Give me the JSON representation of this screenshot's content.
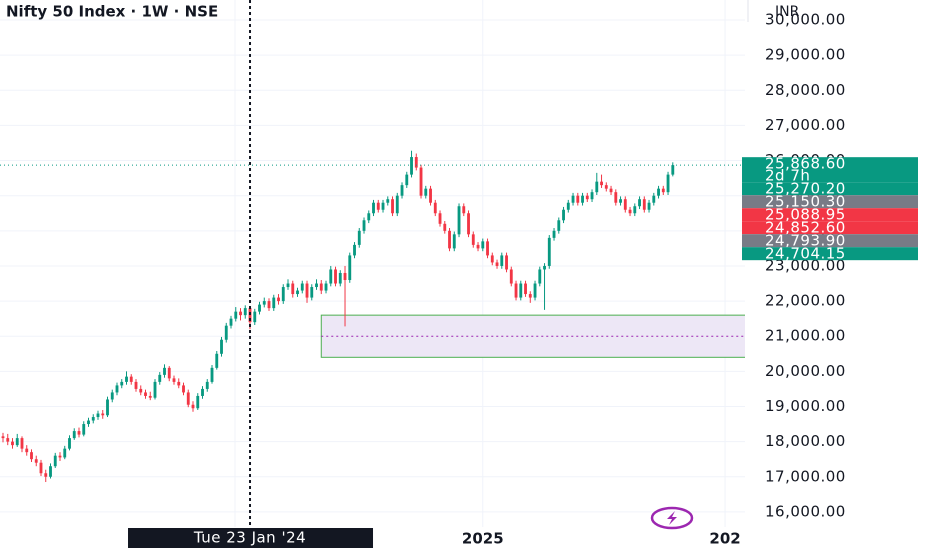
{
  "chart_data": {
    "type": "candlestick",
    "title": "Nifty 50 Index · 1W · NSE",
    "currency": "INR",
    "up_color": "#089981",
    "down_color": "#f23645",
    "grid": true,
    "ylim": [
      15570,
      30570
    ],
    "yticks": [
      {
        "value": 16000,
        "label": "16,000.00"
      },
      {
        "value": 17000,
        "label": "17,000.00"
      },
      {
        "value": 18000,
        "label": "18,000.00"
      },
      {
        "value": 19000,
        "label": "19,000.00"
      },
      {
        "value": 20000,
        "label": "20,000.00"
      },
      {
        "value": 21000,
        "label": "21,000.00"
      },
      {
        "value": 22000,
        "label": "22,000.00"
      },
      {
        "value": 23000,
        "label": "23,000.00"
      },
      {
        "value": 24000,
        "label": "24,000.00"
      },
      {
        "value": 25000,
        "label": "25,000.00"
      },
      {
        "value": 26000,
        "label": "26,000.00"
      },
      {
        "value": 27000,
        "label": "27,000.00"
      },
      {
        "value": 28000,
        "label": "28,000.00"
      },
      {
        "value": 29000,
        "label": "29,000.00"
      },
      {
        "value": 30000,
        "label": "30,000.00"
      }
    ],
    "xlim": [
      -0.63,
      156.2
    ],
    "xticks": [
      {
        "value": 101,
        "label": "2025"
      },
      {
        "value": 152,
        "label": "202"
      }
    ],
    "crosshair": {
      "value": 52,
      "label": "Tue 23 Jan '24"
    },
    "zone": {
      "start": 67,
      "high": 21600,
      "low": 20400,
      "mid": 21000
    },
    "countdown": "2d 7h",
    "price_labels": [
      {
        "value": 25868.6,
        "label": "25,868.60",
        "color": "#089981"
      },
      {
        "value": 25270.2,
        "label": "25,270.20",
        "color": "#089981"
      },
      {
        "value": 25150.3,
        "label": "25,150.30",
        "color": "#787b86"
      },
      {
        "value": 25088.95,
        "label": "25,088.95",
        "color": "#f23645"
      },
      {
        "value": 24852.6,
        "label": "24,852.60",
        "color": "#f23645"
      },
      {
        "value": 24793.9,
        "label": "24,793.90",
        "color": "#787b86"
      },
      {
        "value": 24704.15,
        "label": "24,704.15",
        "color": "#089981"
      }
    ],
    "ohlc": [
      [
        18150,
        18250,
        17980,
        18100
      ],
      [
        18100,
        18220,
        17900,
        18000
      ],
      [
        18000,
        18100,
        17800,
        17900
      ],
      [
        17900,
        18220,
        17850,
        18100
      ],
      [
        18100,
        18150,
        17700,
        17800
      ],
      [
        17800,
        17900,
        17600,
        17700
      ],
      [
        17700,
        17780,
        17420,
        17500
      ],
      [
        17500,
        17600,
        17300,
        17400
      ],
      [
        17400,
        17480,
        17020,
        17100
      ],
      [
        17100,
        17200,
        16850,
        17000
      ],
      [
        17000,
        17380,
        16950,
        17300
      ],
      [
        17300,
        17680,
        17250,
        17600
      ],
      [
        17600,
        17700,
        17450,
        17550
      ],
      [
        17550,
        17880,
        17500,
        17800
      ],
      [
        17800,
        18180,
        17750,
        18100
      ],
      [
        18100,
        18380,
        18050,
        18300
      ],
      [
        18300,
        18400,
        18120,
        18200
      ],
      [
        18200,
        18580,
        18150,
        18500
      ],
      [
        18500,
        18680,
        18420,
        18600
      ],
      [
        18600,
        18780,
        18520,
        18700
      ],
      [
        18700,
        18880,
        18620,
        18800
      ],
      [
        18800,
        18900,
        18650,
        18750
      ],
      [
        18750,
        19280,
        18700,
        19200
      ],
      [
        19200,
        19480,
        19120,
        19400
      ],
      [
        19400,
        19680,
        19320,
        19600
      ],
      [
        19600,
        19780,
        19520,
        19700
      ],
      [
        19700,
        20000,
        19620,
        19850
      ],
      [
        19850,
        19920,
        19620,
        19700
      ],
      [
        19700,
        19780,
        19420,
        19500
      ],
      [
        19500,
        19600,
        19320,
        19400
      ],
      [
        19400,
        19480,
        19220,
        19300
      ],
      [
        19300,
        19420,
        19180,
        19250
      ],
      [
        19250,
        19780,
        19200,
        19700
      ],
      [
        19700,
        19980,
        19620,
        19900
      ],
      [
        19900,
        20200,
        19820,
        20100
      ],
      [
        20100,
        20150,
        19720,
        19800
      ],
      [
        19800,
        19880,
        19620,
        19700
      ],
      [
        19700,
        19800,
        19520,
        19600
      ],
      [
        19600,
        19680,
        19320,
        19400
      ],
      [
        19400,
        19480,
        18980,
        19050
      ],
      [
        19050,
        19150,
        18850,
        18950
      ],
      [
        18950,
        19380,
        18900,
        19300
      ],
      [
        19300,
        19580,
        19220,
        19500
      ],
      [
        19500,
        19780,
        19420,
        19700
      ],
      [
        19700,
        20180,
        19650,
        20100
      ],
      [
        20100,
        20580,
        20050,
        20500
      ],
      [
        20500,
        20980,
        20420,
        20900
      ],
      [
        20900,
        21380,
        20820,
        21300
      ],
      [
        21300,
        21580,
        21220,
        21500
      ],
      [
        21500,
        21830,
        21420,
        21700
      ],
      [
        21700,
        21800,
        21450,
        21600
      ],
      [
        21600,
        21880,
        21500,
        21800
      ],
      [
        21800,
        21850,
        21200,
        21400
      ],
      [
        21400,
        21780,
        21320,
        21700
      ],
      [
        21700,
        21980,
        21620,
        21900
      ],
      [
        21900,
        22100,
        21820,
        22000
      ],
      [
        22000,
        22080,
        21720,
        21800
      ],
      [
        21800,
        22180,
        21720,
        22100
      ],
      [
        22100,
        22200,
        21900,
        22000
      ],
      [
        22000,
        22480,
        21920,
        22400
      ],
      [
        22400,
        22620,
        22320,
        22500
      ],
      [
        22500,
        22580,
        22100,
        22200
      ],
      [
        22200,
        22380,
        22120,
        22300
      ],
      [
        22300,
        22580,
        22220,
        22500
      ],
      [
        22500,
        22580,
        21950,
        22100
      ],
      [
        22100,
        22480,
        22020,
        22400
      ],
      [
        22400,
        22620,
        22320,
        22500
      ],
      [
        22500,
        22600,
        22200,
        22300
      ],
      [
        22300,
        22580,
        22220,
        22500
      ],
      [
        22500,
        23000,
        22420,
        22900
      ],
      [
        22900,
        22980,
        22420,
        22500
      ],
      [
        22500,
        22880,
        22420,
        22800
      ],
      [
        22800,
        23000,
        21280,
        22600
      ],
      [
        22600,
        23380,
        22520,
        23300
      ],
      [
        23300,
        23680,
        23220,
        23600
      ],
      [
        23600,
        24080,
        23520,
        24000
      ],
      [
        24000,
        24380,
        23920,
        24300
      ],
      [
        24300,
        24580,
        24220,
        24500
      ],
      [
        24500,
        24880,
        24420,
        24800
      ],
      [
        24800,
        24880,
        24520,
        24600
      ],
      [
        24600,
        24880,
        24520,
        24800
      ],
      [
        24800,
        24980,
        24720,
        24900
      ],
      [
        24900,
        24980,
        24420,
        24500
      ],
      [
        24500,
        25080,
        24420,
        25000
      ],
      [
        25000,
        25380,
        24920,
        25300
      ],
      [
        25300,
        25680,
        25220,
        25600
      ],
      [
        25600,
        26280,
        25520,
        26100
      ],
      [
        26100,
        26200,
        25720,
        25800
      ],
      [
        25800,
        25880,
        24920,
        25000
      ],
      [
        25000,
        25280,
        24920,
        25200
      ],
      [
        25200,
        25280,
        24720,
        24800
      ],
      [
        24800,
        24880,
        24420,
        24500
      ],
      [
        24500,
        24580,
        24120,
        24200
      ],
      [
        24200,
        24280,
        23920,
        24000
      ],
      [
        24000,
        24080,
        23420,
        23500
      ],
      [
        23500,
        23980,
        23420,
        23900
      ],
      [
        23900,
        24780,
        23820,
        24700
      ],
      [
        24700,
        24780,
        24420,
        24500
      ],
      [
        24500,
        24580,
        23820,
        23900
      ],
      [
        23900,
        23980,
        23520,
        23600
      ],
      [
        23600,
        23680,
        23420,
        23500
      ],
      [
        23500,
        23780,
        23420,
        23700
      ],
      [
        23700,
        23780,
        23220,
        23300
      ],
      [
        23300,
        23380,
        23020,
        23100
      ],
      [
        23100,
        23180,
        22920,
        23000
      ],
      [
        23000,
        23380,
        22920,
        23300
      ],
      [
        23300,
        23380,
        22820,
        22900
      ],
      [
        22900,
        22980,
        22420,
        22500
      ],
      [
        22500,
        22580,
        22020,
        22100
      ],
      [
        22100,
        22580,
        22020,
        22500
      ],
      [
        22500,
        22580,
        22120,
        22200
      ],
      [
        22200,
        22280,
        21950,
        22100
      ],
      [
        22100,
        22580,
        22020,
        22500
      ],
      [
        22500,
        22980,
        22420,
        22900
      ],
      [
        22900,
        23080,
        21750,
        23000
      ],
      [
        23000,
        23880,
        22920,
        23800
      ],
      [
        23800,
        24080,
        23720,
        24000
      ],
      [
        24000,
        24380,
        23920,
        24300
      ],
      [
        24300,
        24680,
        24220,
        24600
      ],
      [
        24600,
        24880,
        24520,
        24800
      ],
      [
        24800,
        25080,
        24720,
        25000
      ],
      [
        25000,
        25080,
        24720,
        24800
      ],
      [
        24800,
        25080,
        24720,
        25000
      ],
      [
        25000,
        25080,
        24820,
        24900
      ],
      [
        24900,
        25180,
        24820,
        25100
      ],
      [
        25100,
        25650,
        25020,
        25400
      ],
      [
        25400,
        25600,
        25220,
        25300
      ],
      [
        25300,
        25380,
        25120,
        25200
      ],
      [
        25200,
        25280,
        25020,
        25100
      ],
      [
        25100,
        25180,
        24720,
        24800
      ],
      [
        24800,
        24980,
        24720,
        24900
      ],
      [
        24900,
        24980,
        24520,
        24600
      ],
      [
        24600,
        24680,
        24420,
        24500
      ],
      [
        24500,
        24780,
        24420,
        24700
      ],
      [
        24700,
        24980,
        24620,
        24900
      ],
      [
        24900,
        24980,
        24520,
        24600
      ],
      [
        24600,
        24880,
        24520,
        24800
      ],
      [
        24800,
        25080,
        24720,
        25000
      ],
      [
        25000,
        25280,
        24920,
        25200
      ],
      [
        25200,
        25280,
        25020,
        25100
      ],
      [
        25100,
        25680,
        25020,
        25600
      ],
      [
        25600,
        25950,
        25550,
        25870
      ]
    ]
  }
}
